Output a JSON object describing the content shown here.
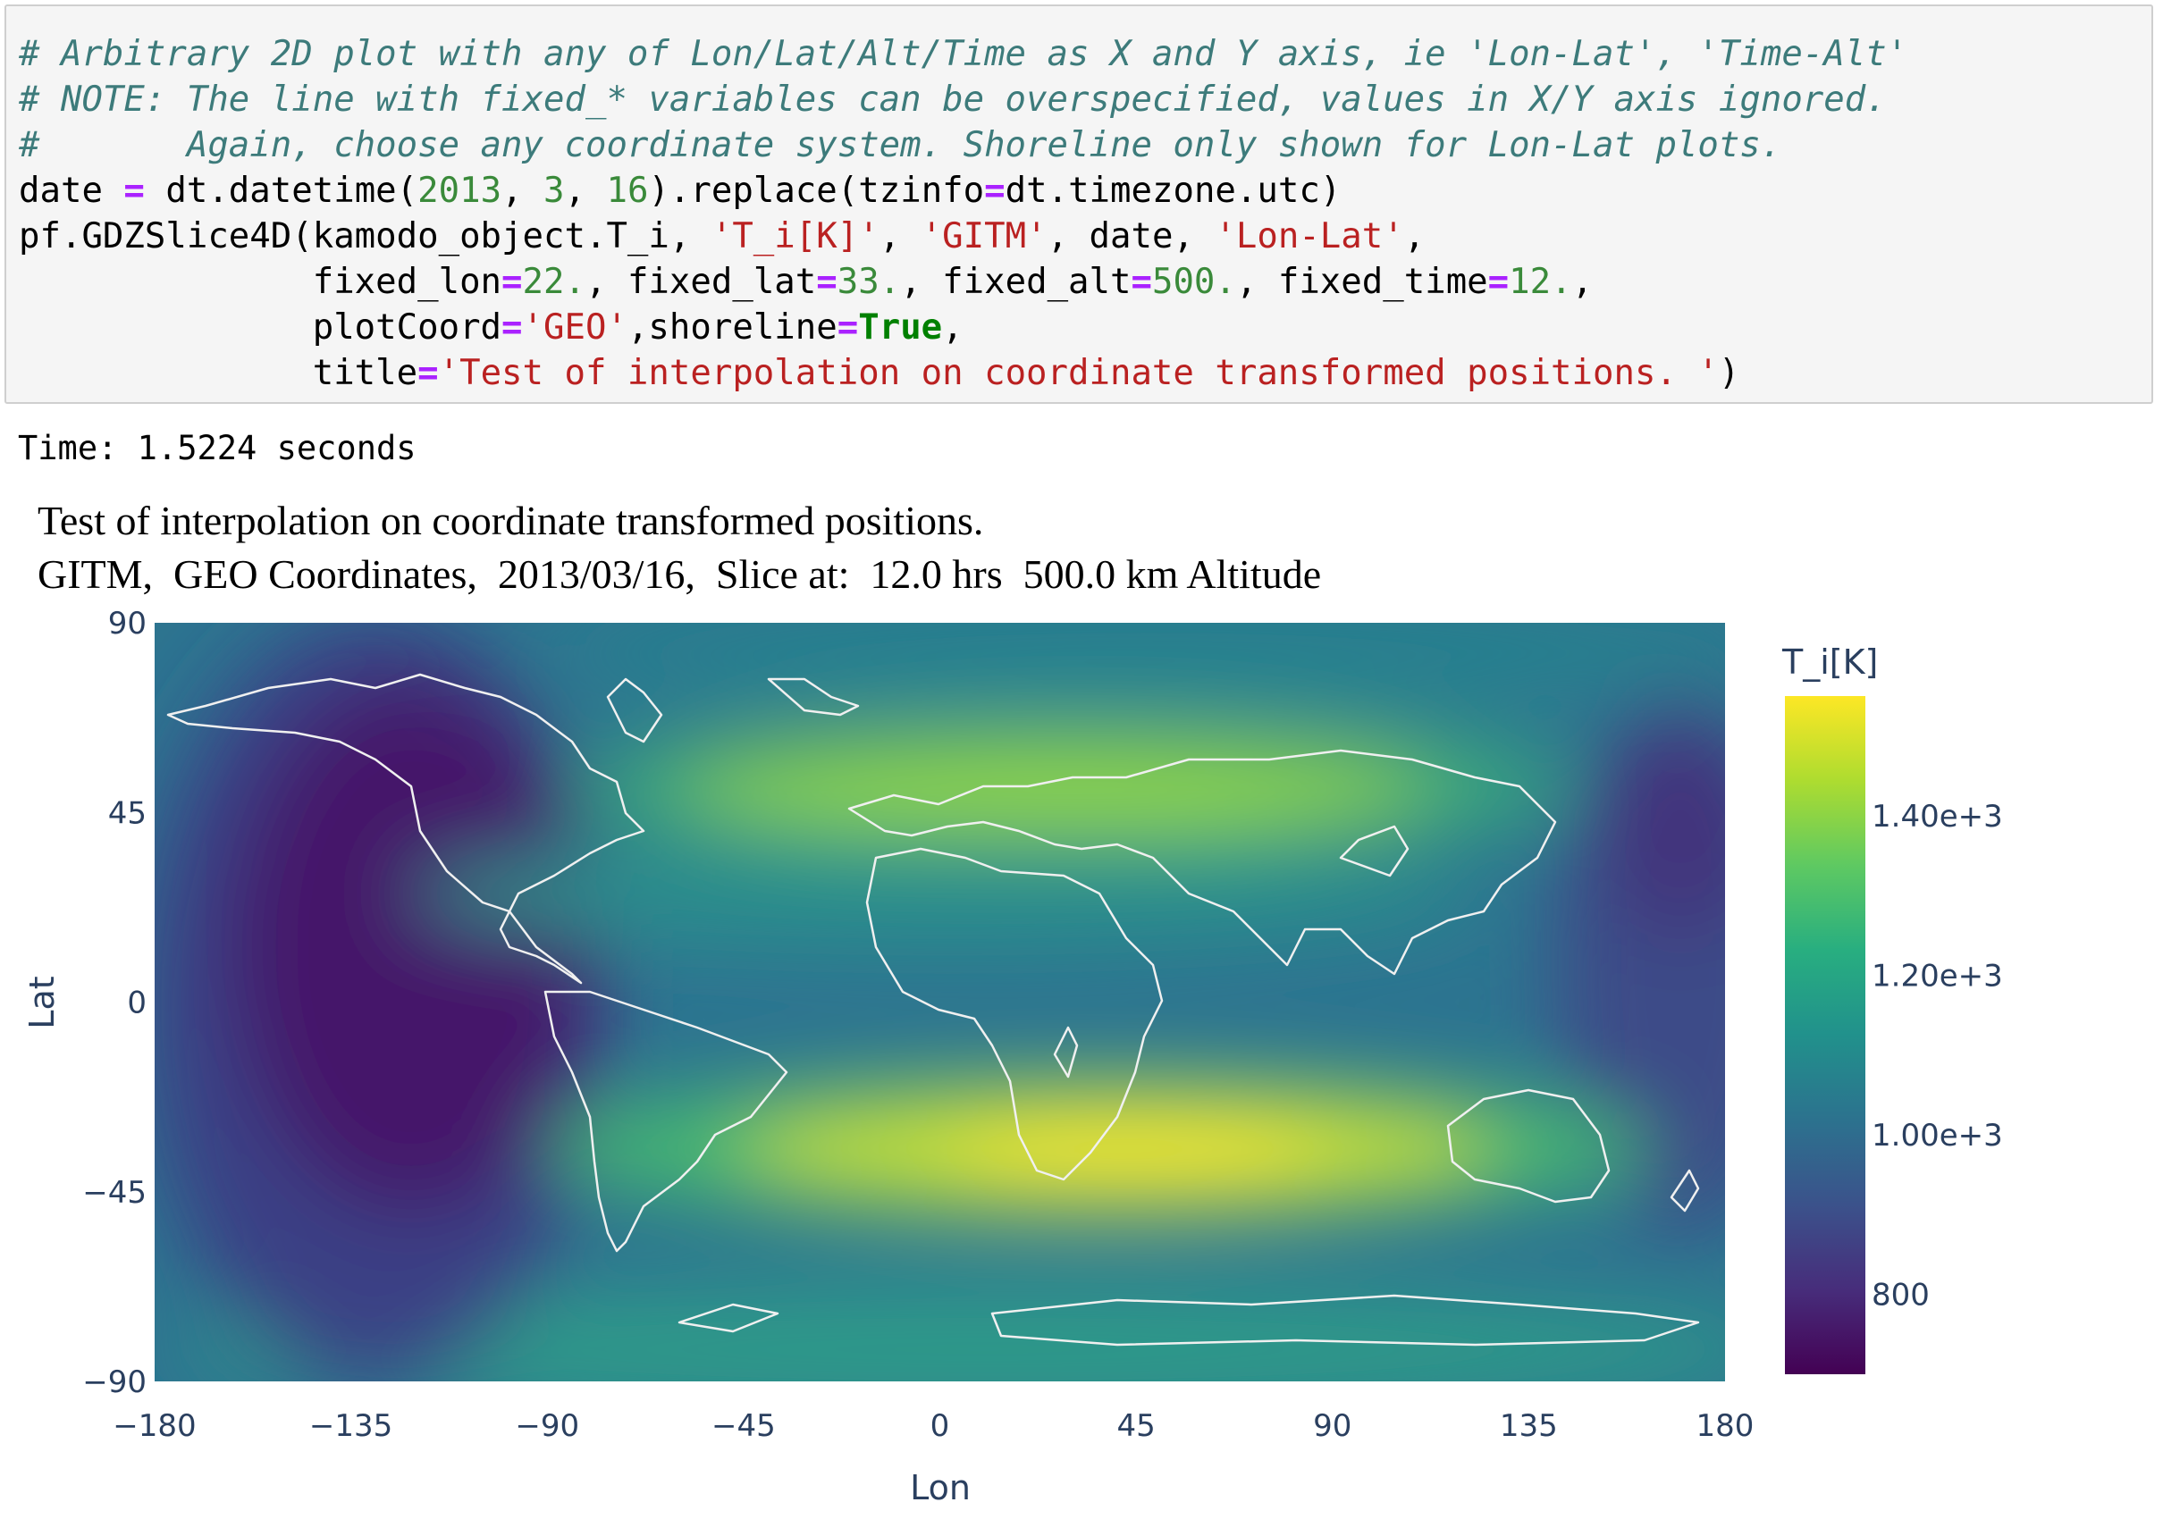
{
  "code_cell": {
    "line1": "# Arbitrary 2D plot with any of Lon/Lat/Alt/Time as X and Y axis, ie 'Lon-Lat', 'Time-Alt'",
    "line2": "# NOTE: The line with fixed_* variables can be overspecified, values in X/Y axis ignored.",
    "line3": "#       Again, choose any coordinate system. Shoreline only shown for Lon-Lat plots.",
    "line4": {
      "a": "date ",
      "b": "=",
      "c": " dt.datetime(",
      "d": "2013",
      "e": ", ",
      "f": "3",
      "g": ", ",
      "h": "16",
      "i": ").replace(tzinfo",
      "j": "=",
      "k": "dt.timezone.utc)"
    },
    "line5": {
      "a": "pf.GDZSlice4D(kamodo_object.T_i, ",
      "b": "'T_i[K]'",
      "c": ", ",
      "d": "'GITM'",
      "e": ", date, ",
      "f": "'Lon-Lat'",
      "g": ","
    },
    "line6": {
      "a": "              fixed_lon",
      "b": "=",
      "c": "22.",
      "d": ", fixed_lat",
      "e": "=",
      "f": "33.",
      "g": ", fixed_alt",
      "h": "=",
      "i": "500.",
      "j": ", fixed_time",
      "k": "=",
      "l": "12.",
      "m": ","
    },
    "line7": {
      "a": "              plotCoord",
      "b": "=",
      "c": "'GEO'",
      "d": ",shoreline",
      "e": "=",
      "f": "True",
      "g": ","
    },
    "line8": {
      "a": "              title",
      "b": "=",
      "c": "'Test of interpolation on coordinate transformed positions. '",
      "d": ")"
    }
  },
  "output": {
    "stdout": "Time: 1.5224 seconds"
  },
  "chart_data": {
    "type": "heatmap",
    "title": "Test of interpolation on coordinate transformed positions.",
    "subtitle": "GITM,  GEO Coordinates,  2013/03/16,  Slice at:  12.0 hrs  500.0 km Altitude",
    "xlabel": "Lon",
    "ylabel": "Lat",
    "xlim": [
      -180,
      180
    ],
    "ylim": [
      -90,
      90
    ],
    "x_ticks": [
      -180,
      -135,
      -90,
      -45,
      0,
      45,
      90,
      135,
      180
    ],
    "x_tick_labels": [
      "−180",
      "−135",
      "−90",
      "−45",
      "0",
      "45",
      "90",
      "135",
      "180"
    ],
    "y_ticks": [
      90,
      45,
      0,
      -45,
      -90
    ],
    "y_tick_labels": [
      "90",
      "45",
      "0",
      "−45",
      "−90"
    ],
    "colorbar": {
      "title": "T_i[K]",
      "colorscale": "Viridis",
      "range": [
        700,
        1550
      ],
      "ticks": [
        800,
        1000,
        1200,
        1400
      ],
      "tick_labels": [
        "800",
        "1.00e+3",
        "1.20e+3",
        "1.40e+3"
      ]
    },
    "shoreline": true,
    "features": [
      {
        "lon": 35,
        "lat": -38,
        "value": 1540,
        "desc": "southern hemisphere maximum"
      },
      {
        "lon": 25,
        "lat": 55,
        "value": 1380,
        "desc": "northern hemisphere band maximum"
      },
      {
        "lon": -120,
        "lat": 20,
        "value": 720,
        "desc": "minimum over eastern Pacific"
      }
    ]
  }
}
